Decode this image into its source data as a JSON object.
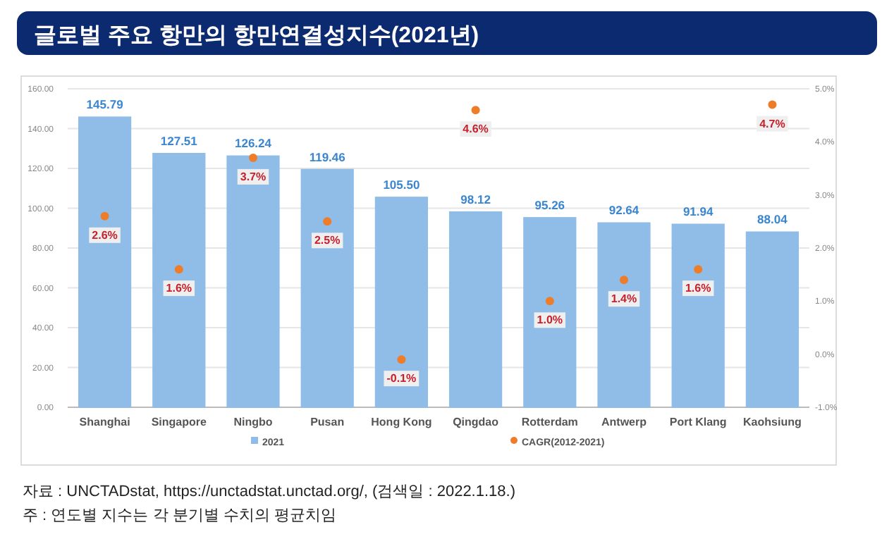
{
  "chart_data": {
    "type": "bar",
    "title": "글로벌 주요 항만의 항만연결성지수(2021년)",
    "categories": [
      "Shanghai",
      "Singapore",
      "Ningbo",
      "Pusan",
      "Hong Kong",
      "Qingdao",
      "Rotterdam",
      "Antwerp",
      "Port Klang",
      "Kaohsiung"
    ],
    "series": [
      {
        "name": "2021",
        "color": "#8fbde8",
        "values": [
          145.79,
          127.51,
          126.24,
          119.46,
          105.5,
          98.12,
          95.26,
          92.64,
          91.94,
          88.04
        ],
        "value_labels": [
          "145.79",
          "127.51",
          "126.24",
          "119.46",
          "105.50",
          "98.12",
          "95.26",
          "92.64",
          "91.94",
          "88.04"
        ]
      },
      {
        "name": "CAGR(2012-2021)",
        "type": "scatter",
        "axis": "y2",
        "color": "#ee7d2a",
        "values": [
          2.6,
          1.6,
          3.7,
          2.5,
          -0.1,
          4.6,
          1.0,
          1.4,
          1.6,
          4.7
        ],
        "value_labels": [
          "2.6%",
          "1.6%",
          "3.7%",
          "2.5%",
          "-0.1%",
          "4.6%",
          "1.0%",
          "1.4%",
          "1.6%",
          "4.7%"
        ]
      }
    ],
    "ylim": [
      0,
      160
    ],
    "yticks": [
      {
        "value": 0,
        "label": "0.00"
      },
      {
        "value": 20,
        "label": "20.00"
      },
      {
        "value": 40,
        "label": "40.00"
      },
      {
        "value": 60,
        "label": "60.00"
      },
      {
        "value": 80,
        "label": "80.00"
      },
      {
        "value": 100,
        "label": "100.00"
      },
      {
        "value": 120,
        "label": "120.00"
      },
      {
        "value": 140,
        "label": "140.00"
      },
      {
        "value": 160,
        "label": "160.00"
      }
    ],
    "y2lim": [
      -1,
      5
    ],
    "y2ticks": [
      {
        "value": -1,
        "label": "-1.0%"
      },
      {
        "value": 0,
        "label": "0.0%"
      },
      {
        "value": 1,
        "label": "1.0%"
      },
      {
        "value": 2,
        "label": "2.0%"
      },
      {
        "value": 3,
        "label": "3.0%"
      },
      {
        "value": 4,
        "label": "4.0%"
      },
      {
        "value": 5,
        "label": "5.0%"
      }
    ],
    "grid": "y",
    "legend": "bottom",
    "marker": "circle",
    "annotations": [
      "자료 : UNCTADstat, https://unctadstat.unctad.org/, (검색일 : 2022.1.18.)",
      "주 : 연도별 지수는 각 분기별 수치의 평균치임"
    ]
  }
}
